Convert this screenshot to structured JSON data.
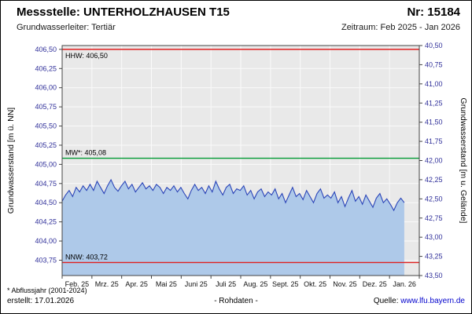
{
  "header": {
    "title": "Messstelle: UNTERHOLZHAUSEN T15",
    "number_label": "Nr: 15184",
    "aquifer": "Grundwasserleiter: Tertiär",
    "period": "Zeitraum: Feb 2025 - Jan 2026"
  },
  "footer": {
    "note": "* Abflussjahr (2001-2024)",
    "created": "erstellt: 17.01.2026",
    "center": "- Rohdaten -",
    "source_label": "Quelle:",
    "source_link": "www.lfu.bayern.de"
  },
  "chart_data": {
    "type": "area",
    "title": "",
    "xlabel": "",
    "ylabel_left": "Grundwasserstand [m ü. NN]",
    "ylabel_right": "Grundwasserstand [m u. Gelände]",
    "y_left_range": [
      403.55,
      406.55
    ],
    "y_left_ticks": [
      406.5,
      406.25,
      406.0,
      405.75,
      405.5,
      405.25,
      405.0,
      404.75,
      404.5,
      404.25,
      404.0,
      403.75
    ],
    "y_right_ticks": [
      40.5,
      40.75,
      41.0,
      41.25,
      41.5,
      41.75,
      42.0,
      42.25,
      42.5,
      42.75,
      43.0,
      43.25,
      43.5
    ],
    "ground_elevation": 447.05,
    "x_tick_labels": [
      "Feb. 25",
      "Mrz. 25",
      "Apr. 25",
      "Mai 25",
      "Juni 25",
      "Juli 25",
      "Aug. 25",
      "Sept. 25",
      "Okt. 25",
      "Nov. 25",
      "Dez. 25",
      "Jan. 26"
    ],
    "grid": true,
    "legend": "none",
    "plot_bg": "#e9e9e9",
    "grid_color": "#fafafa",
    "axis_tick_color": "#30309a",
    "reference_lines": [
      {
        "name": "HHW",
        "label": "HHW: 406,50",
        "value": 406.5,
        "color": "#e02020",
        "label_side": "below"
      },
      {
        "name": "MW",
        "label": "MW*: 405,08",
        "value": 405.08,
        "color": "#009933",
        "label_side": "above"
      },
      {
        "name": "NNW",
        "label": "NNW: 403,72",
        "value": 403.72,
        "color": "#e02020",
        "label_side": "above"
      }
    ],
    "series": [
      {
        "name": "Rohdaten",
        "color": "#2a44b8",
        "fill": "#aec9e9",
        "x_end_fraction": 0.958,
        "values": [
          404.52,
          404.6,
          404.66,
          404.58,
          404.7,
          404.64,
          404.72,
          404.66,
          404.74,
          404.66,
          404.78,
          404.7,
          404.62,
          404.72,
          404.8,
          404.7,
          404.65,
          404.72,
          404.78,
          404.68,
          404.74,
          404.64,
          404.7,
          404.76,
          404.68,
          404.72,
          404.66,
          404.74,
          404.7,
          404.62,
          404.7,
          404.66,
          404.72,
          404.64,
          404.7,
          404.62,
          404.55,
          404.66,
          404.74,
          404.66,
          404.7,
          404.62,
          404.72,
          404.64,
          404.78,
          404.68,
          404.6,
          404.7,
          404.74,
          404.62,
          404.68,
          404.66,
          404.72,
          404.6,
          404.66,
          404.55,
          404.64,
          404.68,
          404.58,
          404.64,
          404.6,
          404.68,
          404.55,
          404.62,
          404.5,
          404.6,
          404.7,
          404.58,
          404.62,
          404.54,
          404.66,
          404.58,
          404.5,
          404.62,
          404.68,
          404.56,
          404.6,
          404.56,
          404.64,
          404.5,
          404.58,
          404.45,
          404.56,
          404.66,
          404.52,
          404.58,
          404.48,
          404.6,
          404.52,
          404.44,
          404.56,
          404.62,
          404.5,
          404.55,
          404.48,
          404.4,
          404.5,
          404.56,
          404.5
        ]
      }
    ]
  }
}
